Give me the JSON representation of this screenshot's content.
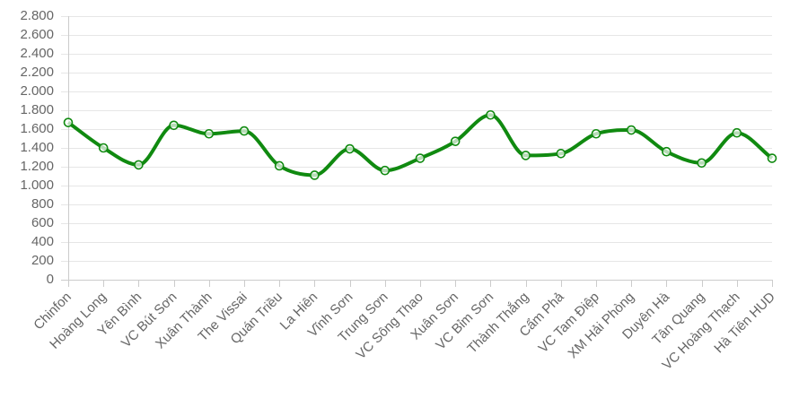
{
  "chart_data": {
    "type": "line",
    "categories": [
      "Chinfon",
      "Hoàng Long",
      "Yên Bình",
      "VC Bút Sơn",
      "Xuân Thành",
      "The Vissai",
      "Quán Triều",
      "La Hiên",
      "Vĩnh Sơn",
      "Trung Sơn",
      "VC Sông Thao",
      "Xuân Sơn",
      "VC Bỉm Sơn",
      "Thành Thắng",
      "Cẩm Phả",
      "VC Tam Điệp",
      "XM Hải Phòng",
      "Duyên Hà",
      "Tân Quang",
      "VC Hoàng Thạch",
      "Hà Tiên HUD"
    ],
    "series": [
      {
        "values": [
          1670,
          1400,
          1220,
          1640,
          1550,
          1580,
          1210,
          1110,
          1390,
          1160,
          1290,
          1470,
          1750,
          1320,
          1340,
          1550,
          1590,
          1360,
          1240,
          1560,
          1290
        ]
      }
    ],
    "ylim": [
      0,
      2800
    ],
    "yticks": [
      0,
      200,
      400,
      600,
      800,
      1000,
      1200,
      1400,
      1600,
      1800,
      2000,
      2200,
      2400,
      2600,
      2800
    ],
    "ytick_labels": [
      "0",
      "200",
      "400",
      "600",
      "800",
      "1.000",
      "1.200",
      "1.400",
      "1.600",
      "1.800",
      "2.000",
      "2.200",
      "2.400",
      "2.600",
      "2.800"
    ],
    "grid": true,
    "line_color": "#108a10"
  }
}
